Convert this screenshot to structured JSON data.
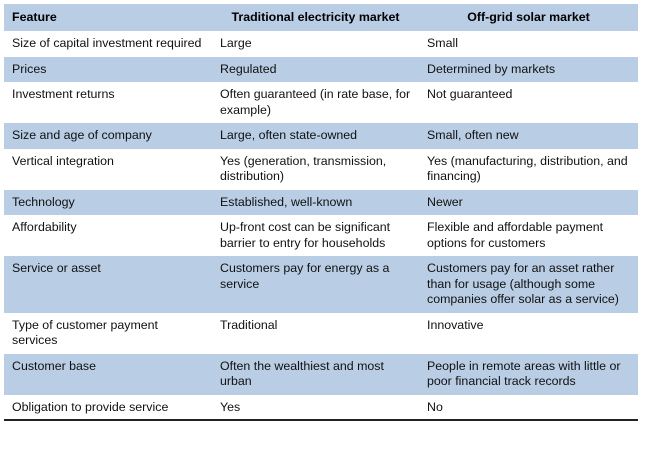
{
  "table": {
    "headers": [
      "Feature",
      "Traditional electricity market",
      "Off-grid solar market"
    ],
    "rows": [
      [
        "Size of capital investment required",
        "Large",
        "Small"
      ],
      [
        "Prices",
        "Regulated",
        "Determined by markets"
      ],
      [
        "Investment returns",
        "Often guaranteed (in rate base, for example)",
        "Not guaranteed"
      ],
      [
        "Size and age of company",
        "Large, often state-owned",
        "Small, often new"
      ],
      [
        "Vertical integration",
        "Yes (generation, transmission, distribution)",
        "Yes (manufacturing, distribution, and financing)"
      ],
      [
        "Technology",
        "Established, well-known",
        "Newer"
      ],
      [
        "Affordability",
        "Up-front cost can be significant barrier to entry for households",
        "Flexible and affordable payment options for customers"
      ],
      [
        "Service or asset",
        "Customers pay for energy as a service",
        "Customers pay for an asset rather than for usage (although some companies offer solar as a service)"
      ],
      [
        "Type of customer payment services",
        "Traditional",
        "Innovative"
      ],
      [
        "Customer base",
        "Often the wealthiest and most urban",
        "People in remote areas with little or poor financial track records"
      ],
      [
        "Obligation to provide service",
        "Yes",
        "No"
      ]
    ]
  },
  "colors": {
    "shaded_row": "#b9cde5",
    "plain_row": "#ffffff",
    "rule": "#222222"
  }
}
